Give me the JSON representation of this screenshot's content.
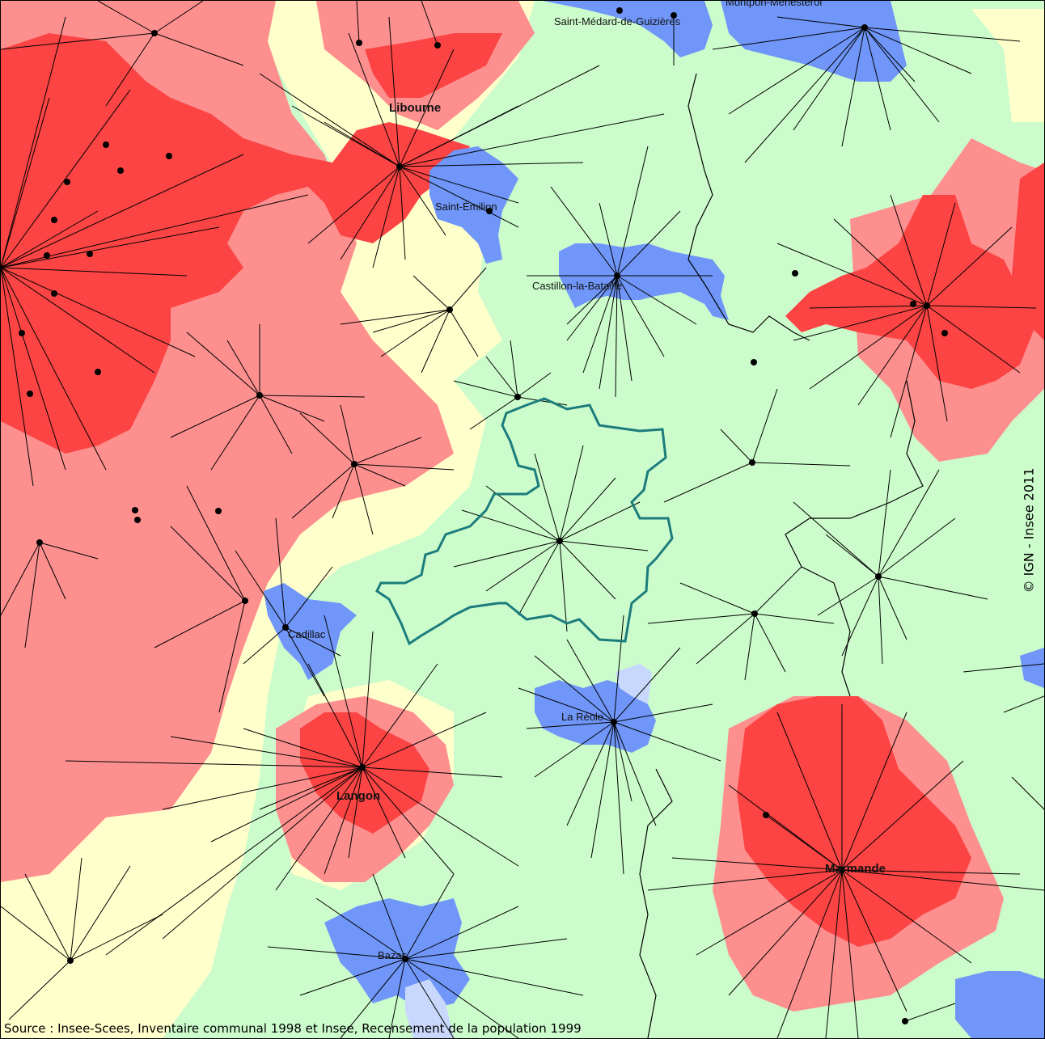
{
  "map": {
    "places": {
      "saint_medard": "Saint-Médard-de-Guizières",
      "montpon": "Montpon-Ménestérol",
      "libourne": "Libourne",
      "saint_emilion": "Saint-Émilion",
      "castillon": "Castillon-la-Bataille",
      "cadillac": "Cadillac",
      "la_reole": "La Réole",
      "langon": "Langon",
      "marmande": "Marmande",
      "bazas": "Bazas"
    },
    "source": "Source : Insee-Scees, Inventaire communal 1998 et Insee, Recensement de la population 1999",
    "copyright": "© IGN - Insee 2011",
    "colors": {
      "background": "#ccfccc",
      "light_yellow": "#ffffcc",
      "salmon": "#fd8f8f",
      "red": "#fc4444",
      "blue": "#6f96f8",
      "light_blue": "#c8d8fc",
      "outline_teal": "#1c7c7c",
      "link_lines": "#000000"
    }
  }
}
